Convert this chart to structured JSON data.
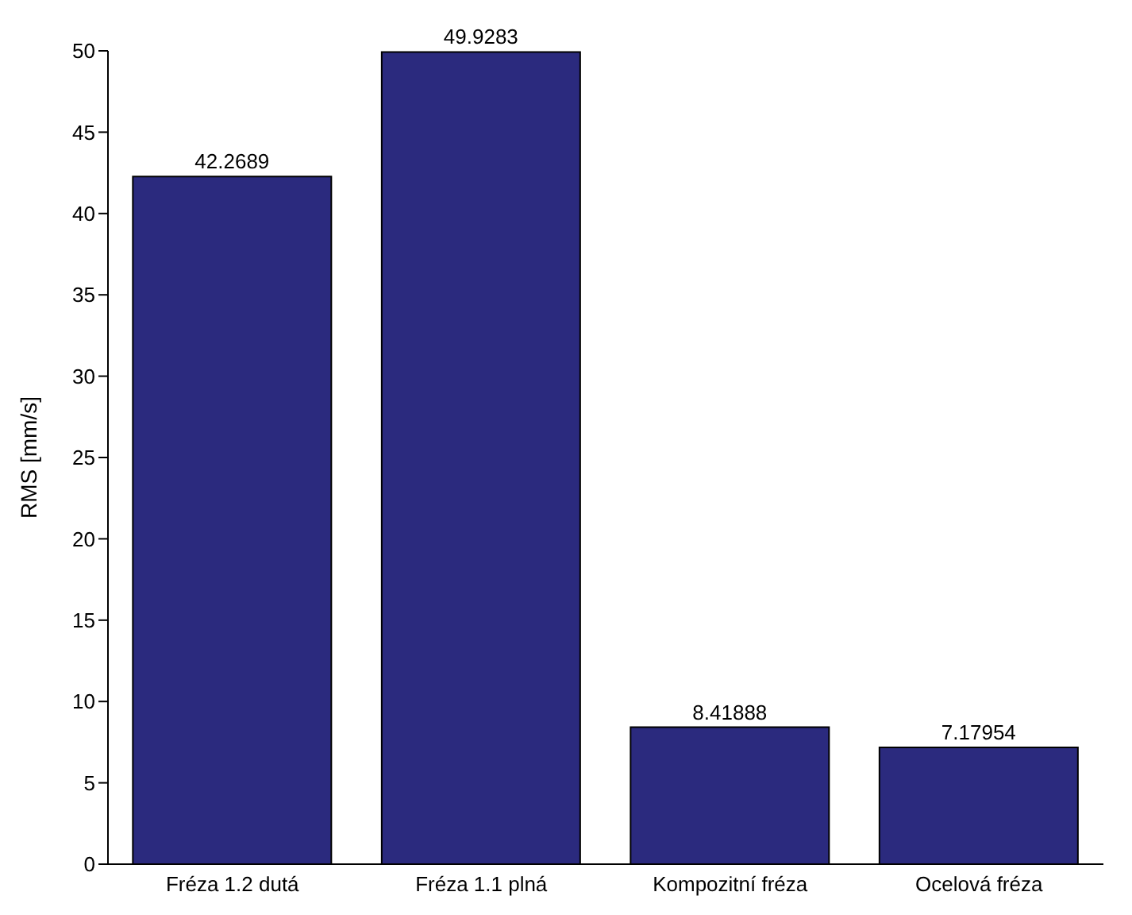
{
  "chart_data": {
    "type": "bar",
    "ylabel": "RMS [mm/s]",
    "categories": [
      "Fréza 1.2 dutá",
      "Fréza 1.1 plná",
      "Kompozitní fréza",
      "Ocelová fréza"
    ],
    "values": [
      42.2689,
      49.9283,
      8.41888,
      7.17954
    ],
    "color": "#2b2a7e",
    "ylim": [
      0,
      50
    ],
    "yticks": [
      0,
      5,
      10,
      15,
      20,
      25,
      30,
      35,
      40,
      45,
      50
    ],
    "data_labels": true,
    "grid": false,
    "legend": false
  }
}
